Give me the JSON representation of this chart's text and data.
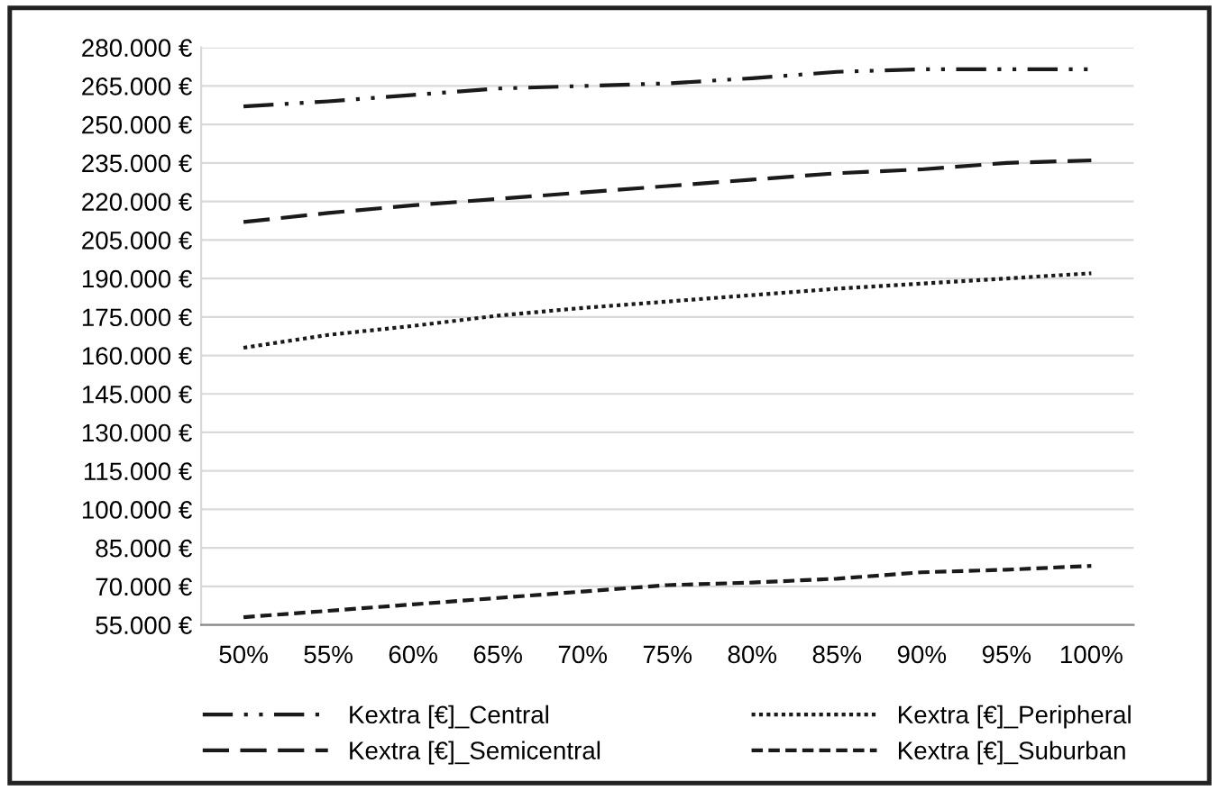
{
  "chart_data": {
    "type": "line",
    "categories": [
      "50%",
      "55%",
      "60%",
      "65%",
      "70%",
      "75%",
      "80%",
      "85%",
      "90%",
      "95%",
      "100%"
    ],
    "series": [
      {
        "name": "Kextra [€]_Central",
        "color": "#1a1a1a",
        "line_style": "dashdot",
        "values": [
          257000,
          259000,
          261500,
          264000,
          265000,
          266000,
          268000,
          270500,
          271500,
          271500,
          271500
        ]
      },
      {
        "name": "Kextra [€]_Semicentral",
        "color": "#1a1a1a",
        "line_style": "long dashed",
        "values": [
          212000,
          215500,
          218500,
          221000,
          223500,
          226000,
          228500,
          231000,
          232500,
          235000,
          236000
        ]
      },
      {
        "name": "Kextra [€]_Peripheral",
        "color": "#1a1a1a",
        "line_style": "dotted",
        "values": [
          163000,
          168000,
          171500,
          175500,
          178500,
          181000,
          183500,
          186000,
          188000,
          190000,
          192000
        ]
      },
      {
        "name": "Kextra [€]_Suburban",
        "color": "#1a1a1a",
        "line_style": "dashed",
        "values": [
          58000,
          60500,
          63000,
          65500,
          68000,
          70500,
          71500,
          73000,
          75500,
          76500,
          78000
        ]
      }
    ],
    "ylim": [
      55000,
      280000
    ],
    "yticks": [
      {
        "value": 55000,
        "label": "55.000 €"
      },
      {
        "value": 70000,
        "label": "70.000 €"
      },
      {
        "value": 85000,
        "label": "85.000 €"
      },
      {
        "value": 100000,
        "label": "100.000 €"
      },
      {
        "value": 115000,
        "label": "115.000 €"
      },
      {
        "value": 130000,
        "label": "130.000 €"
      },
      {
        "value": 145000,
        "label": "145.000 €"
      },
      {
        "value": 160000,
        "label": "160.000 €"
      },
      {
        "value": 175000,
        "label": "175.000 €"
      },
      {
        "value": 190000,
        "label": "190.000 €"
      },
      {
        "value": 205000,
        "label": "205.000 €"
      },
      {
        "value": 220000,
        "label": "220.000 €"
      },
      {
        "value": 235000,
        "label": "235.000 €"
      },
      {
        "value": 250000,
        "label": "250.000 €"
      },
      {
        "value": 265000,
        "label": "265.000 €"
      },
      {
        "value": 280000,
        "label": "280.000 €"
      }
    ],
    "grid": "y",
    "legend": "bottom"
  }
}
